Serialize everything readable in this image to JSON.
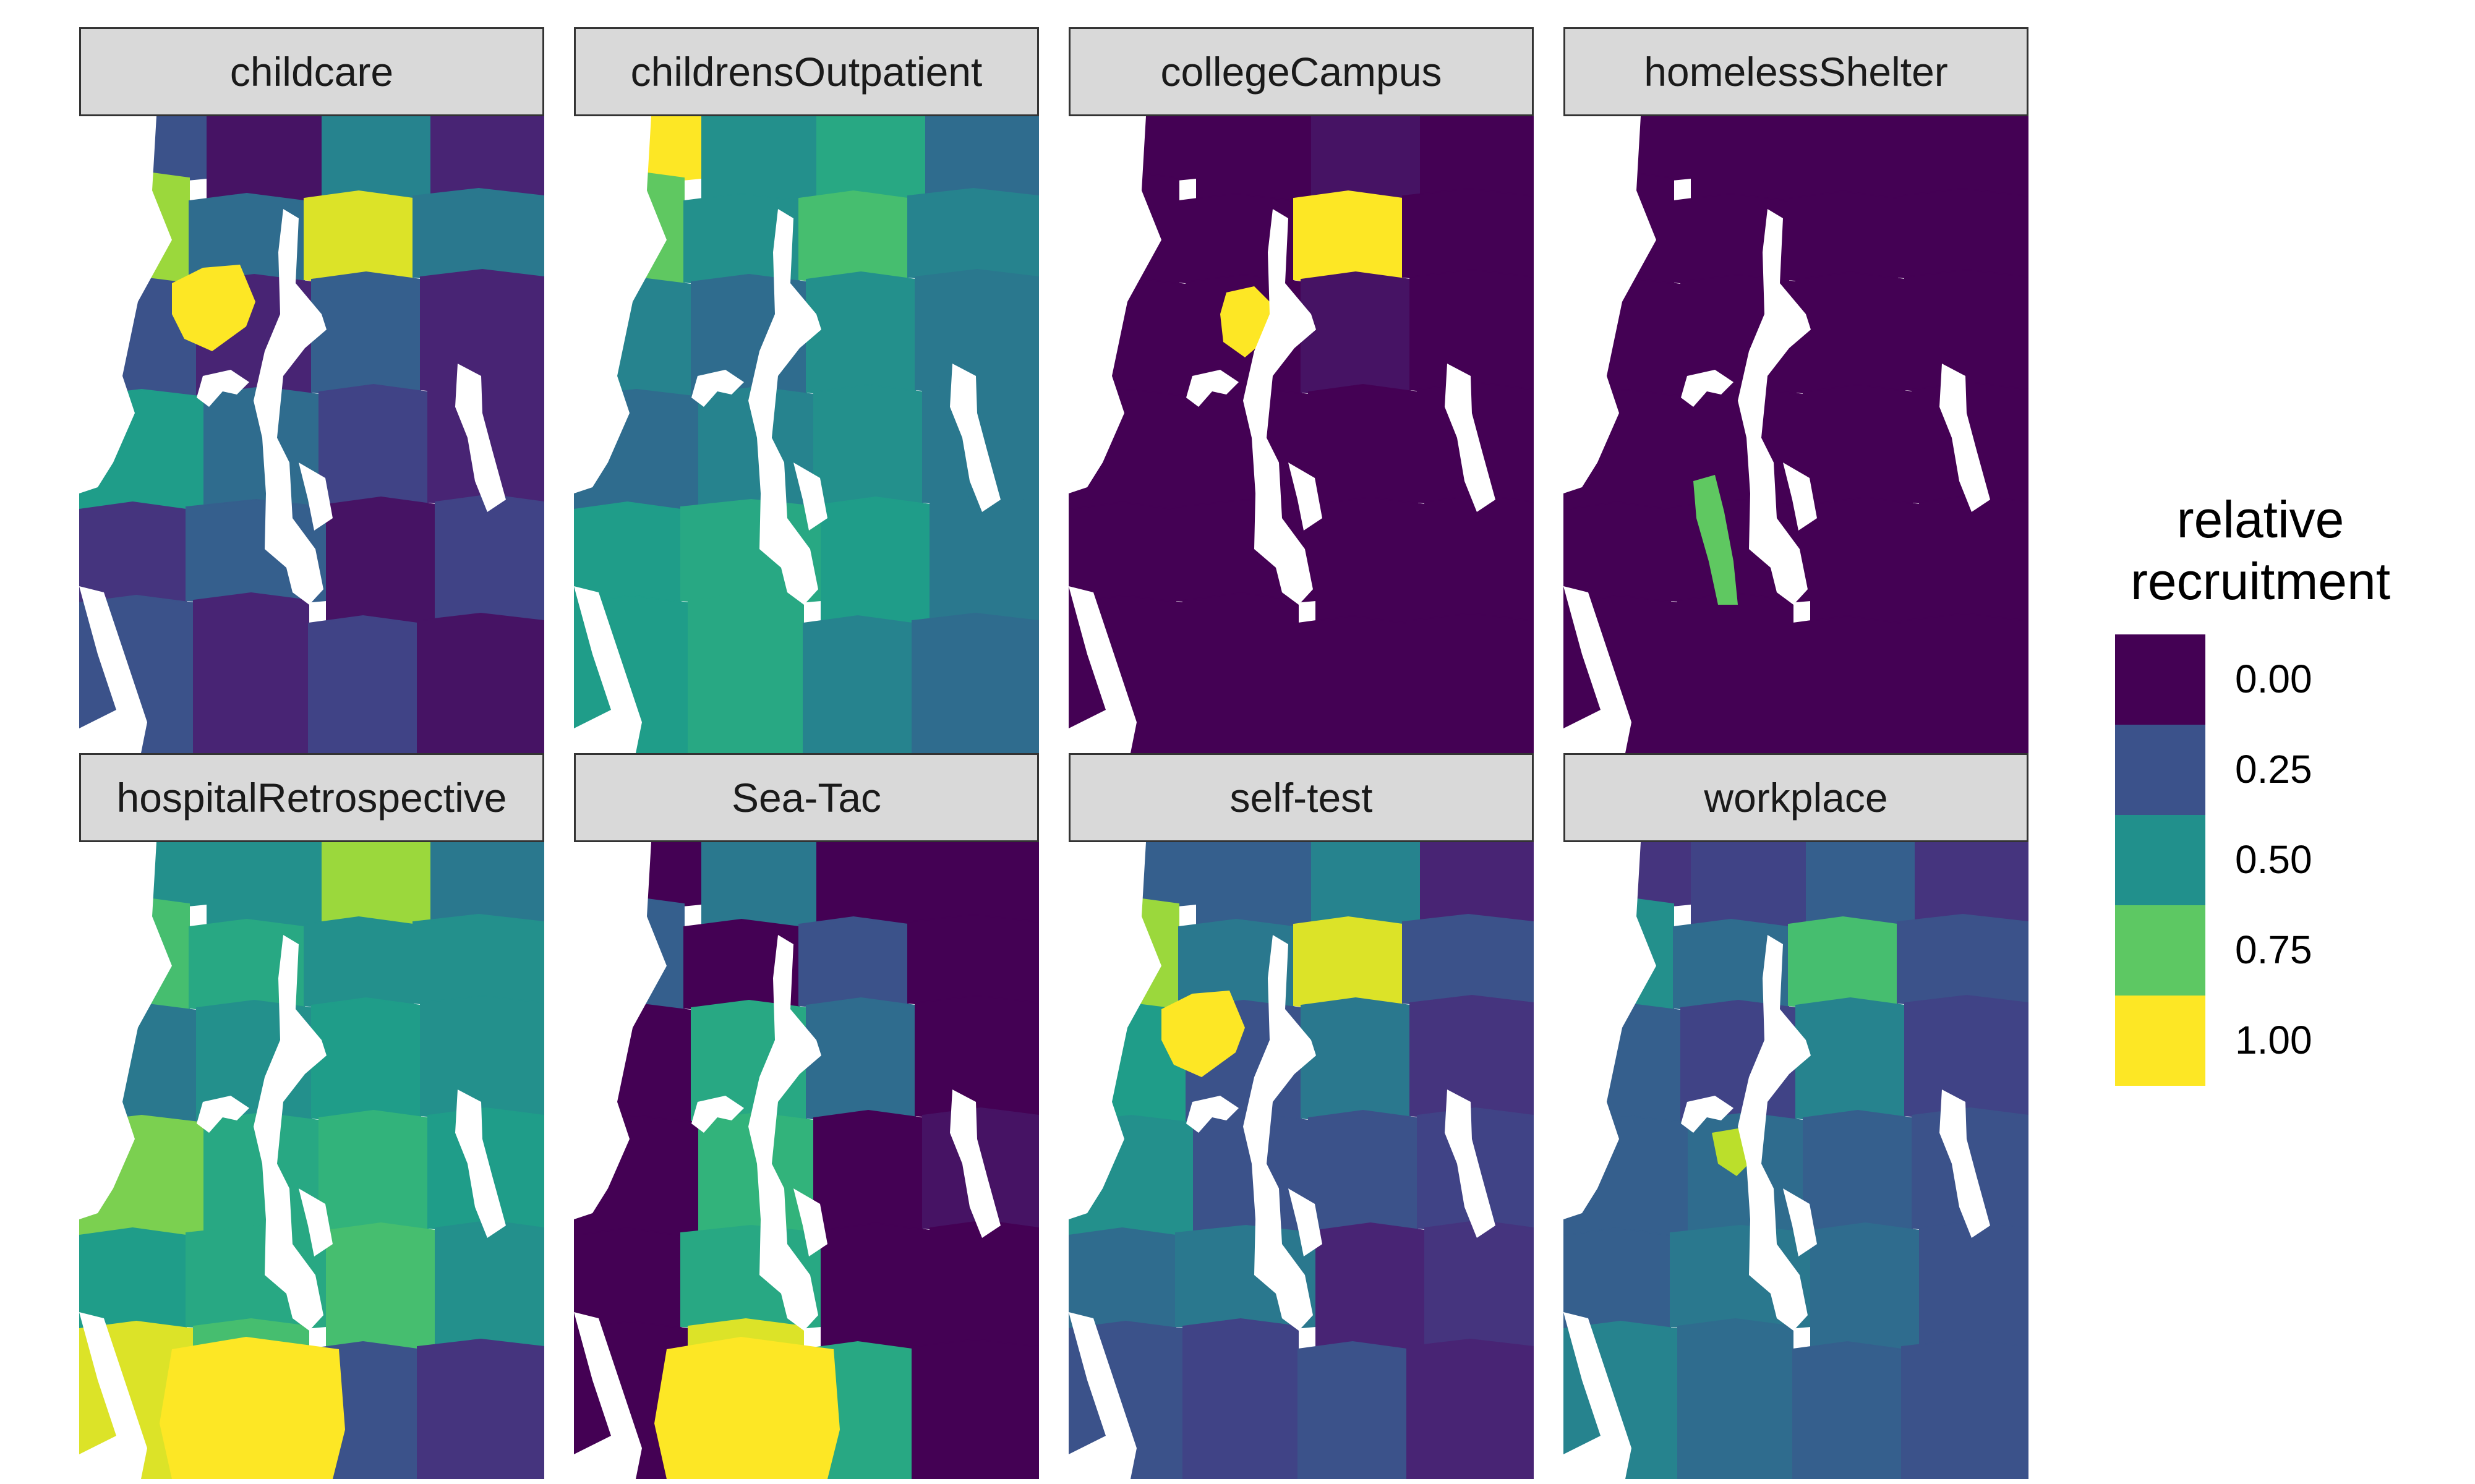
{
  "legend": {
    "title_line1": "relative",
    "title_line2": "recruitment",
    "breaks": [
      "0.00",
      "0.25",
      "0.50",
      "0.75",
      "1.00"
    ],
    "palette": [
      "#440154",
      "#3b528b",
      "#21908c",
      "#5dc863",
      "#fde725"
    ]
  },
  "facets": [
    {
      "label": "childcare",
      "levels": [
        0.25,
        0.05,
        0.45,
        0.1,
        0.85,
        0.35,
        0.95,
        0.4,
        0.25,
        0.1,
        0.3,
        0.1,
        0.55,
        0.35,
        0.2,
        0.1,
        0.15,
        0.3,
        0.05,
        0.2,
        0.25,
        0.1,
        0.2,
        0.05
      ],
      "highlight": "north"
    },
    {
      "label": "childrensOutpatient",
      "levels": [
        1.0,
        0.5,
        0.6,
        0.35,
        0.75,
        0.5,
        0.7,
        0.45,
        0.45,
        0.35,
        0.5,
        0.4,
        0.35,
        0.45,
        0.5,
        0.4,
        0.55,
        0.6,
        0.55,
        0.4,
        0.55,
        0.6,
        0.45,
        0.35
      ],
      "highlight": "none"
    },
    {
      "label": "collegeCampus",
      "levels": [
        0.0,
        0.0,
        0.05,
        0.0,
        0.0,
        0.0,
        1.0,
        0.0,
        0.0,
        0.0,
        0.05,
        0.0,
        0.0,
        0.0,
        0.0,
        0.0,
        0.0,
        0.0,
        0.0,
        0.0,
        0.0,
        0.0,
        0.0,
        0.0
      ],
      "highlight": "campus"
    },
    {
      "label": "homelessShelter",
      "levels": [
        0.0,
        0.0,
        0.0,
        0.0,
        0.0,
        0.0,
        0.0,
        0.0,
        0.0,
        0.0,
        0.0,
        0.0,
        0.0,
        0.0,
        0.0,
        0.0,
        0.0,
        0.0,
        0.0,
        0.0,
        0.0,
        0.0,
        0.0,
        0.0
      ],
      "highlight": "shelter"
    },
    {
      "label": "hospitalRetrospective",
      "levels": [
        0.5,
        0.5,
        0.85,
        0.4,
        0.7,
        0.6,
        0.5,
        0.5,
        0.4,
        0.5,
        0.55,
        0.5,
        0.8,
        0.6,
        0.65,
        0.55,
        0.55,
        0.6,
        0.7,
        0.5,
        0.95,
        0.7,
        0.25,
        0.15
      ],
      "highlight": "south"
    },
    {
      "label": "Sea-Tac",
      "levels": [
        0.0,
        0.4,
        0.0,
        0.0,
        0.3,
        0.0,
        0.25,
        0.0,
        0.0,
        0.6,
        0.35,
        0.0,
        0.0,
        0.65,
        0.0,
        0.05,
        0.0,
        0.6,
        0.0,
        0.0,
        0.0,
        0.95,
        0.6,
        0.0
      ],
      "highlight": "south"
    },
    {
      "label": "self-test",
      "levels": [
        0.3,
        0.3,
        0.45,
        0.1,
        0.85,
        0.4,
        0.95,
        0.25,
        0.55,
        0.25,
        0.4,
        0.15,
        0.5,
        0.25,
        0.25,
        0.2,
        0.35,
        0.4,
        0.1,
        0.15,
        0.25,
        0.2,
        0.25,
        0.1
      ],
      "highlight": "north"
    },
    {
      "label": "workplace",
      "levels": [
        0.15,
        0.2,
        0.3,
        0.15,
        0.5,
        0.35,
        0.7,
        0.25,
        0.3,
        0.2,
        0.45,
        0.2,
        0.3,
        0.35,
        0.3,
        0.25,
        0.3,
        0.4,
        0.35,
        0.25,
        0.45,
        0.35,
        0.3,
        0.25
      ],
      "highlight": "center"
    }
  ]
}
